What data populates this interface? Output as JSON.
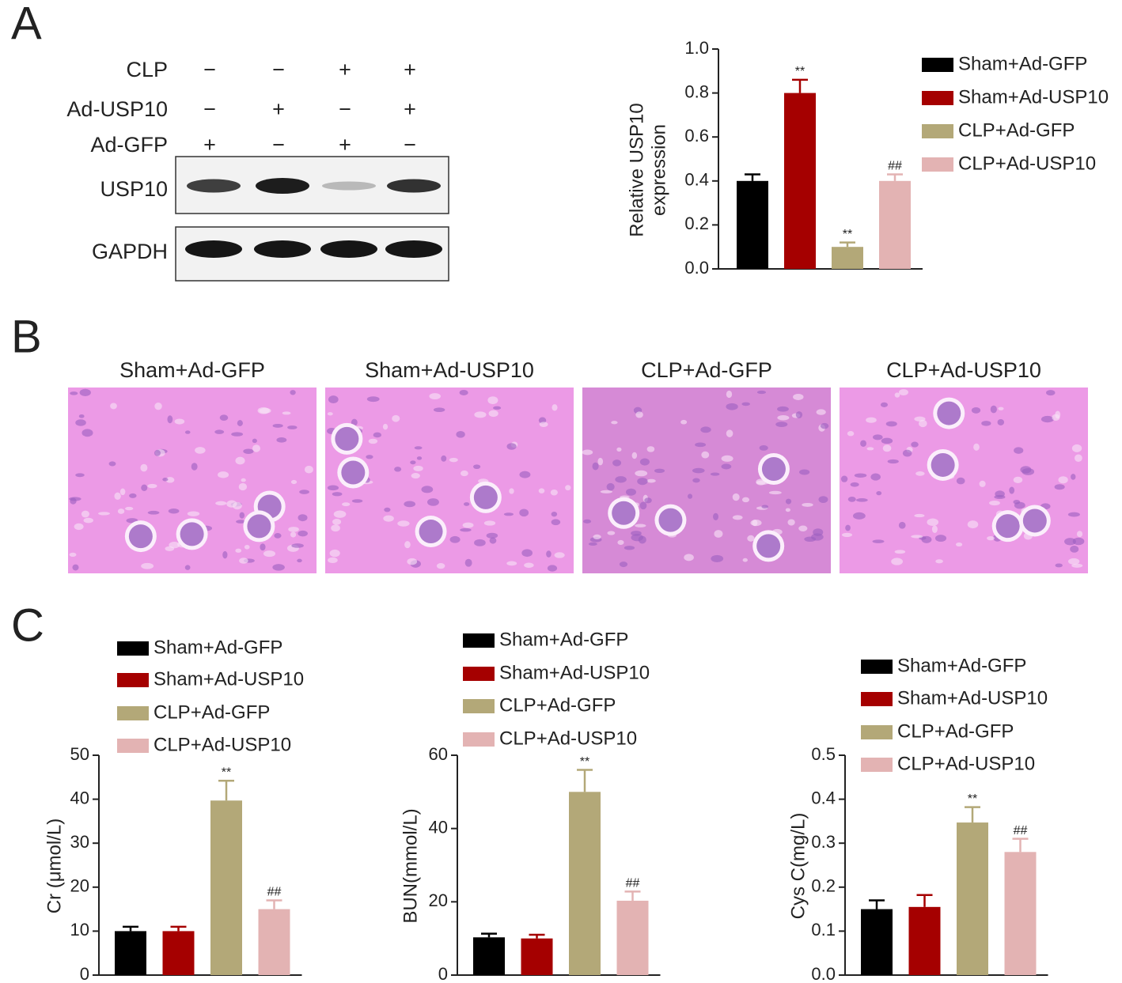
{
  "panels": [
    "A",
    "B",
    "C"
  ],
  "blot": {
    "conditions": [
      {
        "label": "CLP",
        "signs": [
          "−",
          "−",
          "+",
          "+"
        ]
      },
      {
        "label": "Ad-USP10",
        "signs": [
          "−",
          "+",
          "−",
          "+"
        ]
      },
      {
        "label": "Ad-GFP",
        "signs": [
          "+",
          "−",
          "+",
          "−"
        ]
      }
    ],
    "rows": [
      "USP10",
      "GAPDH"
    ]
  },
  "histology": {
    "titles": [
      "Sham+Ad-GFP",
      "Sham+Ad-USP10",
      "CLP+Ad-GFP",
      "CLP+Ad-USP10"
    ]
  },
  "chart_data": [
    {
      "type": "bar",
      "ylabel": [
        "Relative USP10",
        "expression"
      ],
      "ylim": [
        0,
        1.0
      ],
      "yticks": [
        {
          "value": 0,
          "label": "0.0"
        },
        0.2,
        0.4,
        0.6,
        0.8,
        {
          "value": 1,
          "label": "1.0"
        }
      ],
      "series": [
        {
          "name": "Sham+Ad-GFP",
          "color": "#000000",
          "values": [
            0.4
          ],
          "errors": [
            0.03
          ]
        },
        {
          "name": "Sham+Ad-USP10",
          "color": "#a50000",
          "values": [
            0.8
          ],
          "errors": [
            0.06
          ],
          "annotation": "**"
        },
        {
          "name": "CLP+Ad-GFP",
          "color": "#b3a878",
          "values": [
            0.1
          ],
          "errors": [
            0.02
          ],
          "annotation": "**"
        },
        {
          "name": "CLP+Ad-USP10",
          "color": "#e3b3b3",
          "values": [
            0.4
          ],
          "errors": [
            0.03
          ],
          "annotation": "##"
        }
      ]
    },
    {
      "type": "bar",
      "ylabel": [
        "Cr (μmol/L)"
      ],
      "ylim": [
        0,
        50
      ],
      "yticks": [
        0,
        10,
        20,
        30,
        40,
        50
      ],
      "series": [
        {
          "name": "Sham+Ad-GFP",
          "color": "#000000",
          "values": [
            10
          ],
          "errors": [
            1
          ]
        },
        {
          "name": "Sham+Ad-USP10",
          "color": "#a50000",
          "values": [
            10
          ],
          "errors": [
            1
          ]
        },
        {
          "name": "CLP+Ad-GFP",
          "color": "#b3a878",
          "values": [
            39.7
          ],
          "errors": [
            4.5
          ],
          "annotation": "**"
        },
        {
          "name": "CLP+Ad-USP10",
          "color": "#e3b3b3",
          "values": [
            15
          ],
          "errors": [
            2
          ],
          "annotation": "##"
        }
      ]
    },
    {
      "type": "bar",
      "ylabel": [
        "BUN(mmol/L)"
      ],
      "ylim": [
        0,
        60
      ],
      "yticks": [
        0,
        20,
        40,
        60
      ],
      "series": [
        {
          "name": "Sham+Ad-GFP",
          "color": "#000000",
          "values": [
            10.3
          ],
          "errors": [
            1
          ]
        },
        {
          "name": "Sham+Ad-USP10",
          "color": "#a50000",
          "values": [
            10
          ],
          "errors": [
            1
          ]
        },
        {
          "name": "CLP+Ad-GFP",
          "color": "#b3a878",
          "values": [
            50
          ],
          "errors": [
            6
          ],
          "annotation": "**"
        },
        {
          "name": "CLP+Ad-USP10",
          "color": "#e3b3b3",
          "values": [
            20.3
          ],
          "errors": [
            2.5
          ],
          "annotation": "##"
        }
      ]
    },
    {
      "type": "bar",
      "ylabel": [
        "Cys C(mg/L)"
      ],
      "ylim": [
        0,
        0.5
      ],
      "yticks": [
        {
          "value": 0,
          "label": "0.0"
        },
        0.1,
        0.2,
        0.3,
        0.4,
        0.5
      ],
      "series": [
        {
          "name": "Sham+Ad-GFP",
          "color": "#000000",
          "values": [
            0.15
          ],
          "errors": [
            0.02
          ]
        },
        {
          "name": "Sham+Ad-USP10",
          "color": "#a50000",
          "values": [
            0.155
          ],
          "errors": [
            0.027
          ]
        },
        {
          "name": "CLP+Ad-GFP",
          "color": "#b3a878",
          "values": [
            0.347
          ],
          "errors": [
            0.035
          ],
          "annotation": "**"
        },
        {
          "name": "CLP+Ad-USP10",
          "color": "#e3b3b3",
          "values": [
            0.28
          ],
          "errors": [
            0.03
          ],
          "annotation": "##"
        }
      ]
    }
  ]
}
